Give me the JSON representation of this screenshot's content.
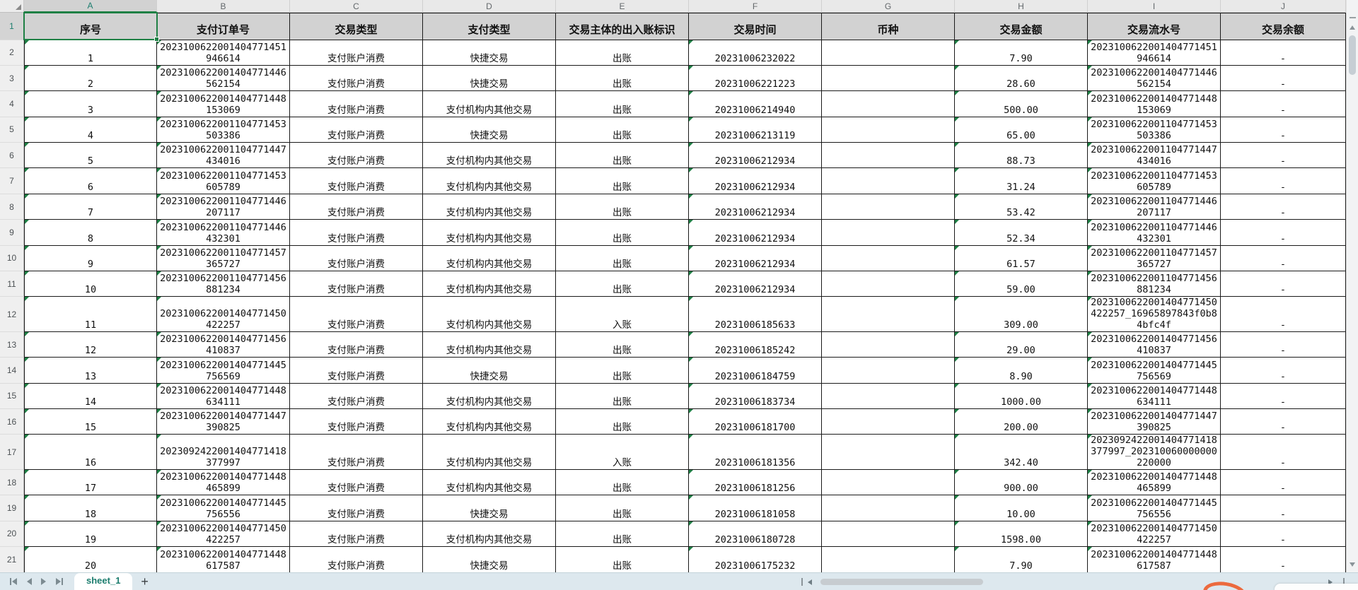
{
  "theme": {
    "accent_green": "#1f8045",
    "accent_teal": "#1c7d6e",
    "header_fill": "#d2d2d2",
    "grid_line": "#1a1a1a",
    "bottom_bar_fill": "#dde8ee",
    "swoosh_orange": "#ec6a3e"
  },
  "sheet": {
    "columns": [
      {
        "letter": "A",
        "selected": true
      },
      {
        "letter": "B",
        "selected": false
      },
      {
        "letter": "C",
        "selected": false
      },
      {
        "letter": "D",
        "selected": false
      },
      {
        "letter": "E",
        "selected": false
      },
      {
        "letter": "F",
        "selected": false
      },
      {
        "letter": "G",
        "selected": false
      },
      {
        "letter": "H",
        "selected": false
      },
      {
        "letter": "I",
        "selected": false
      },
      {
        "letter": "J",
        "selected": false
      }
    ],
    "header_row": {
      "row_num": "1",
      "cells": [
        "序号",
        "支付订单号",
        "交易类型",
        "支付类型",
        "交易主体的出入账标识",
        "交易时间",
        "币种",
        "交易金额",
        "交易流水号",
        "交易余额"
      ]
    },
    "rows": [
      {
        "row_num": "2",
        "seq": "1",
        "order_no": "2023100622001404771451946614",
        "tx_type": "支付账户消费",
        "pay_type": "快捷交易",
        "inout": "出账",
        "time": "20231006232022",
        "currency": "",
        "amount": "7.90",
        "serial_no": "2023100622001404771451946614",
        "balance": "-"
      },
      {
        "row_num": "3",
        "seq": "2",
        "order_no": "2023100622001404771446562154",
        "tx_type": "支付账户消费",
        "pay_type": "快捷交易",
        "inout": "出账",
        "time": "20231006221223",
        "currency": "",
        "amount": "28.60",
        "serial_no": "2023100622001404771446562154",
        "balance": "-"
      },
      {
        "row_num": "4",
        "seq": "3",
        "order_no": "2023100622001404771448153069",
        "tx_type": "支付账户消费",
        "pay_type": "支付机构内其他交易",
        "inout": "出账",
        "time": "20231006214940",
        "currency": "",
        "amount": "500.00",
        "serial_no": "2023100622001404771448153069",
        "balance": "-"
      },
      {
        "row_num": "5",
        "seq": "4",
        "order_no": "2023100622001104771453503386",
        "tx_type": "支付账户消费",
        "pay_type": "快捷交易",
        "inout": "出账",
        "time": "20231006213119",
        "currency": "",
        "amount": "65.00",
        "serial_no": "2023100622001104771453503386",
        "balance": "-"
      },
      {
        "row_num": "6",
        "seq": "5",
        "order_no": "2023100622001104771447434016",
        "tx_type": "支付账户消费",
        "pay_type": "支付机构内其他交易",
        "inout": "出账",
        "time": "20231006212934",
        "currency": "",
        "amount": "88.73",
        "serial_no": "2023100622001104771447434016",
        "balance": "-"
      },
      {
        "row_num": "7",
        "seq": "6",
        "order_no": "2023100622001104771453605789",
        "tx_type": "支付账户消费",
        "pay_type": "支付机构内其他交易",
        "inout": "出账",
        "time": "20231006212934",
        "currency": "",
        "amount": "31.24",
        "serial_no": "2023100622001104771453605789",
        "balance": "-"
      },
      {
        "row_num": "8",
        "seq": "7",
        "order_no": "2023100622001104771446207117",
        "tx_type": "支付账户消费",
        "pay_type": "支付机构内其他交易",
        "inout": "出账",
        "time": "20231006212934",
        "currency": "",
        "amount": "53.42",
        "serial_no": "2023100622001104771446207117",
        "balance": "-"
      },
      {
        "row_num": "9",
        "seq": "8",
        "order_no": "2023100622001104771446432301",
        "tx_type": "支付账户消费",
        "pay_type": "支付机构内其他交易",
        "inout": "出账",
        "time": "20231006212934",
        "currency": "",
        "amount": "52.34",
        "serial_no": "2023100622001104771446432301",
        "balance": "-"
      },
      {
        "row_num": "10",
        "seq": "9",
        "order_no": "2023100622001104771457365727",
        "tx_type": "支付账户消费",
        "pay_type": "支付机构内其他交易",
        "inout": "出账",
        "time": "20231006212934",
        "currency": "",
        "amount": "61.57",
        "serial_no": "2023100622001104771457365727",
        "balance": "-"
      },
      {
        "row_num": "11",
        "seq": "10",
        "order_no": "2023100622001104771456881234",
        "tx_type": "支付账户消费",
        "pay_type": "支付机构内其他交易",
        "inout": "出账",
        "time": "20231006212934",
        "currency": "",
        "amount": "59.00",
        "serial_no": "2023100622001104771456881234",
        "balance": "-"
      },
      {
        "row_num": "12",
        "seq": "11",
        "order_no": "2023100622001404771450422257",
        "tx_type": "支付账户消费",
        "pay_type": "支付机构内其他交易",
        "inout": "入账",
        "time": "20231006185633",
        "currency": "",
        "amount": "309.00",
        "serial_no": "2023100622001404771450422257_16965897843f0b84bfc4f",
        "balance": "-"
      },
      {
        "row_num": "13",
        "seq": "12",
        "order_no": "2023100622001404771456410837",
        "tx_type": "支付账户消费",
        "pay_type": "支付机构内其他交易",
        "inout": "出账",
        "time": "20231006185242",
        "currency": "",
        "amount": "29.00",
        "serial_no": "2023100622001404771456410837",
        "balance": "-"
      },
      {
        "row_num": "14",
        "seq": "13",
        "order_no": "2023100622001404771445756569",
        "tx_type": "支付账户消费",
        "pay_type": "快捷交易",
        "inout": "出账",
        "time": "20231006184759",
        "currency": "",
        "amount": "8.90",
        "serial_no": "2023100622001404771445756569",
        "balance": "-"
      },
      {
        "row_num": "15",
        "seq": "14",
        "order_no": "2023100622001404771448634111",
        "tx_type": "支付账户消费",
        "pay_type": "支付机构内其他交易",
        "inout": "出账",
        "time": "20231006183734",
        "currency": "",
        "amount": "1000.00",
        "serial_no": "2023100622001404771448634111",
        "balance": "-"
      },
      {
        "row_num": "16",
        "seq": "15",
        "order_no": "2023100622001404771447390825",
        "tx_type": "支付账户消费",
        "pay_type": "支付机构内其他交易",
        "inout": "出账",
        "time": "20231006181700",
        "currency": "",
        "amount": "200.00",
        "serial_no": "2023100622001404771447390825",
        "balance": "-"
      },
      {
        "row_num": "17",
        "seq": "16",
        "order_no": "2023092422001404771418377997",
        "tx_type": "支付账户消费",
        "pay_type": "支付机构内其他交易",
        "inout": "入账",
        "time": "20231006181356",
        "currency": "",
        "amount": "342.40",
        "serial_no": "2023092422001404771418377997_202310060000000220000",
        "balance": "-"
      },
      {
        "row_num": "18",
        "seq": "17",
        "order_no": "2023100622001404771448465899",
        "tx_type": "支付账户消费",
        "pay_type": "支付机构内其他交易",
        "inout": "出账",
        "time": "20231006181256",
        "currency": "",
        "amount": "900.00",
        "serial_no": "2023100622001404771448465899",
        "balance": "-"
      },
      {
        "row_num": "19",
        "seq": "18",
        "order_no": "2023100622001404771445756556",
        "tx_type": "支付账户消费",
        "pay_type": "快捷交易",
        "inout": "出账",
        "time": "20231006181058",
        "currency": "",
        "amount": "10.00",
        "serial_no": "2023100622001404771445756556",
        "balance": "-"
      },
      {
        "row_num": "20",
        "seq": "19",
        "order_no": "2023100622001404771450422257",
        "tx_type": "支付账户消费",
        "pay_type": "支付机构内其他交易",
        "inout": "出账",
        "time": "20231006180728",
        "currency": "",
        "amount": "1598.00",
        "serial_no": "2023100622001404771450422257",
        "balance": "-"
      },
      {
        "row_num": "21",
        "seq": "20",
        "order_no": "2023100622001404771448617587",
        "tx_type": "支付账户消费",
        "pay_type": "快捷交易",
        "inout": "出账",
        "time": "20231006175232",
        "currency": "",
        "amount": "7.90",
        "serial_no": "2023100622001404771448617587",
        "balance": "-"
      }
    ],
    "selection": {
      "cell": "A1"
    },
    "tab_bar": {
      "active_tab": "sheet_1",
      "add_label": "+"
    }
  }
}
